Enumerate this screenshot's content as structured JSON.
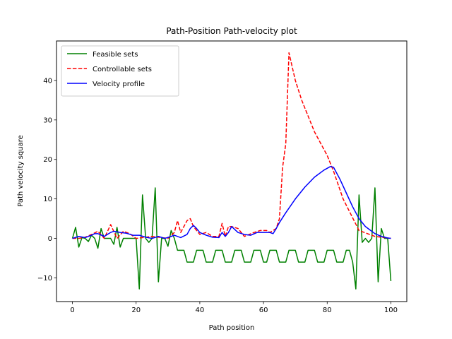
{
  "chart_data": {
    "type": "line",
    "title": "Path-Position Path-velocity plot",
    "xlabel": "Path position",
    "ylabel": "Path velocity square",
    "xlim": [
      -5,
      105
    ],
    "ylim": [
      -16,
      50
    ],
    "xticks": [
      0,
      20,
      40,
      60,
      80,
      100
    ],
    "yticks": [
      -10,
      0,
      10,
      20,
      30,
      40
    ],
    "ytick_labels": [
      "−10",
      "0",
      "10",
      "20",
      "30",
      "40"
    ],
    "grid": false,
    "legend": "top-left",
    "series": [
      {
        "name": "Feasible sets",
        "color": "#008000",
        "style": "solid",
        "points": [
          [
            0,
            0
          ],
          [
            1,
            2.8
          ],
          [
            2,
            -2.2
          ],
          [
            3,
            0.2
          ],
          [
            4,
            0
          ],
          [
            5,
            -0.8
          ],
          [
            6,
            0.8
          ],
          [
            7,
            0
          ],
          [
            8,
            -2.5
          ],
          [
            9,
            2.5
          ],
          [
            10,
            0
          ],
          [
            11,
            0
          ],
          [
            12,
            0
          ],
          [
            13,
            -1.5
          ],
          [
            14,
            2.8
          ],
          [
            15,
            -2.2
          ],
          [
            16,
            0
          ],
          [
            17,
            0
          ],
          [
            18,
            0
          ],
          [
            19,
            0
          ],
          [
            20,
            0
          ],
          [
            21,
            -12.8
          ],
          [
            22,
            11
          ],
          [
            23,
            0
          ],
          [
            24,
            -1
          ],
          [
            25,
            0
          ],
          [
            26,
            12.8
          ],
          [
            27,
            -11
          ],
          [
            28,
            0
          ],
          [
            29,
            0
          ],
          [
            30,
            -2
          ],
          [
            31,
            2
          ],
          [
            32,
            0
          ],
          [
            33,
            -3
          ],
          [
            34,
            -3
          ],
          [
            35,
            -3
          ],
          [
            36,
            -6
          ],
          [
            37,
            -6
          ],
          [
            38,
            -6
          ],
          [
            39,
            -3
          ],
          [
            40,
            -3
          ],
          [
            41,
            -3
          ],
          [
            42,
            -6
          ],
          [
            43,
            -6
          ],
          [
            44,
            -6
          ],
          [
            45,
            -3
          ],
          [
            46,
            -3
          ],
          [
            47,
            -3
          ],
          [
            48,
            -6
          ],
          [
            49,
            -6
          ],
          [
            50,
            -6
          ],
          [
            51,
            -3
          ],
          [
            52,
            -3
          ],
          [
            53,
            -3
          ],
          [
            54,
            -6
          ],
          [
            55,
            -6
          ],
          [
            56,
            -6
          ],
          [
            57,
            -3
          ],
          [
            58,
            -3
          ],
          [
            59,
            -3
          ],
          [
            60,
            -6
          ],
          [
            61,
            -6
          ],
          [
            62,
            -3
          ],
          [
            63,
            -3
          ],
          [
            64,
            -3
          ],
          [
            65,
            -6
          ],
          [
            66,
            -6
          ],
          [
            67,
            -6
          ],
          [
            68,
            -3
          ],
          [
            69,
            -3
          ],
          [
            70,
            -3
          ],
          [
            71,
            -6
          ],
          [
            72,
            -6
          ],
          [
            73,
            -6
          ],
          [
            74,
            -3
          ],
          [
            75,
            -3
          ],
          [
            76,
            -3
          ],
          [
            77,
            -6
          ],
          [
            78,
            -6
          ],
          [
            79,
            -6
          ],
          [
            80,
            -3
          ],
          [
            81,
            -3
          ],
          [
            82,
            -3
          ],
          [
            83,
            -6
          ],
          [
            84,
            -6
          ],
          [
            85,
            -6
          ],
          [
            86,
            -3
          ],
          [
            87,
            -3
          ],
          [
            88,
            -6
          ],
          [
            89,
            -12.8
          ],
          [
            90,
            11
          ],
          [
            91,
            -1
          ],
          [
            92,
            0
          ],
          [
            93,
            -1
          ],
          [
            94,
            0
          ],
          [
            95,
            12.8
          ],
          [
            96,
            -11
          ],
          [
            97,
            2.5
          ],
          [
            98,
            0
          ],
          [
            99,
            0
          ],
          [
            100,
            -10.8
          ]
        ]
      },
      {
        "name": "Controllable sets",
        "color": "#ff0000",
        "style": "dashed",
        "points": [
          [
            0,
            0
          ],
          [
            2,
            0
          ],
          [
            4,
            0.3
          ],
          [
            6,
            1
          ],
          [
            8,
            1.8
          ],
          [
            10,
            0
          ],
          [
            12,
            3.5
          ],
          [
            14,
            0
          ],
          [
            16,
            1.8
          ],
          [
            18,
            1.2
          ],
          [
            20,
            0
          ],
          [
            25,
            0.5
          ],
          [
            30,
            0
          ],
          [
            32,
            1.5
          ],
          [
            33,
            4.5
          ],
          [
            34,
            1.5
          ],
          [
            36,
            4.5
          ],
          [
            37,
            5
          ],
          [
            38,
            3
          ],
          [
            40,
            1
          ],
          [
            42,
            1.5
          ],
          [
            44,
            0.5
          ],
          [
            46,
            0.5
          ],
          [
            47,
            3.8
          ],
          [
            48,
            0.5
          ],
          [
            49,
            3
          ],
          [
            50,
            3
          ],
          [
            52,
            2.5
          ],
          [
            54,
            0.5
          ],
          [
            57,
            1.5
          ],
          [
            59,
            2
          ],
          [
            61,
            2
          ],
          [
            62,
            1.5
          ],
          [
            64,
            2.5
          ],
          [
            65,
            5
          ],
          [
            66,
            18
          ],
          [
            67,
            24
          ],
          [
            68,
            47
          ],
          [
            70,
            40
          ],
          [
            72,
            35
          ],
          [
            74,
            31
          ],
          [
            76,
            27
          ],
          [
            78,
            24
          ],
          [
            80,
            21
          ],
          [
            81,
            19
          ],
          [
            82,
            17
          ],
          [
            85,
            10
          ],
          [
            90,
            2
          ],
          [
            95,
            0.5
          ],
          [
            100,
            0
          ]
        ]
      },
      {
        "name": "Velocity profile",
        "color": "#0000ff",
        "style": "solid",
        "points": [
          [
            0,
            0
          ],
          [
            2,
            0.5
          ],
          [
            4,
            0.2
          ],
          [
            6,
            0.8
          ],
          [
            7,
            1.2
          ],
          [
            8,
            1.2
          ],
          [
            10,
            0.5
          ],
          [
            12,
            1.5
          ],
          [
            13,
            1.8
          ],
          [
            15,
            1.5
          ],
          [
            17,
            1.3
          ],
          [
            19,
            0.8
          ],
          [
            21,
            0.8
          ],
          [
            23,
            0.3
          ],
          [
            25,
            0
          ],
          [
            27,
            0.5
          ],
          [
            29,
            0
          ],
          [
            31,
            0.5
          ],
          [
            32,
            0.8
          ],
          [
            34,
            0.2
          ],
          [
            36,
            1
          ],
          [
            37,
            2.5
          ],
          [
            38,
            3.3
          ],
          [
            39,
            2.5
          ],
          [
            40,
            1.5
          ],
          [
            42,
            0.8
          ],
          [
            44,
            0.3
          ],
          [
            46,
            0.2
          ],
          [
            47,
            1.5
          ],
          [
            48,
            0.5
          ],
          [
            49,
            1.5
          ],
          [
            50,
            3
          ],
          [
            52,
            1.5
          ],
          [
            54,
            1
          ],
          [
            56,
            0.8
          ],
          [
            58,
            1.5
          ],
          [
            60,
            1.5
          ],
          [
            62,
            1.5
          ],
          [
            63,
            1.2
          ],
          [
            64,
            2.5
          ],
          [
            65,
            4
          ],
          [
            67,
            6.5
          ],
          [
            70,
            10
          ],
          [
            73,
            13
          ],
          [
            76,
            15.5
          ],
          [
            79,
            17.3
          ],
          [
            81,
            18.2
          ],
          [
            82,
            18
          ],
          [
            84,
            15
          ],
          [
            86,
            11.5
          ],
          [
            88,
            8
          ],
          [
            90,
            5
          ],
          [
            92,
            3
          ],
          [
            94,
            1.8
          ],
          [
            95,
            1.2
          ],
          [
            97,
            0.5
          ],
          [
            99,
            0.1
          ],
          [
            100,
            0
          ]
        ]
      }
    ]
  }
}
